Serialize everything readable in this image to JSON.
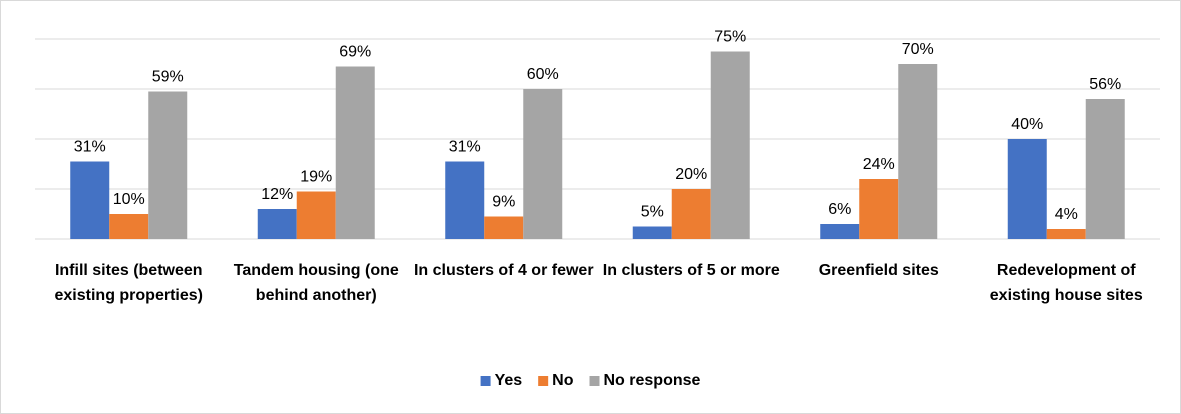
{
  "chart_data": {
    "type": "bar",
    "categories": [
      "Infill sites (between existing properties)",
      "Tandem housing (one behind another)",
      "In clusters of 4 or fewer",
      "In clusters of 5 or more",
      "Greenfield sites",
      "Redevelopment of existing house sites"
    ],
    "series": [
      {
        "name": "Yes",
        "color": "#4472c4",
        "values": [
          31,
          12,
          31,
          5,
          6,
          40
        ],
        "value_labels": [
          "31%",
          "12%",
          "31%",
          "5%",
          "6%",
          "40%"
        ]
      },
      {
        "name": "No",
        "color": "#ed7d31",
        "values": [
          10,
          19,
          9,
          20,
          24,
          4
        ],
        "value_labels": [
          "10%",
          "19%",
          "9%",
          "20%",
          "24%",
          "4%"
        ]
      },
      {
        "name": "No response",
        "color": "#a5a5a5",
        "values": [
          59,
          69,
          60,
          75,
          70,
          56
        ],
        "value_labels": [
          "59%",
          "69%",
          "60%",
          "75%",
          "70%",
          "56%"
        ]
      }
    ],
    "ylim": [
      0,
      80
    ],
    "yticks": [
      0,
      20,
      40,
      60,
      80
    ],
    "grid": true,
    "legend": "bottom"
  }
}
